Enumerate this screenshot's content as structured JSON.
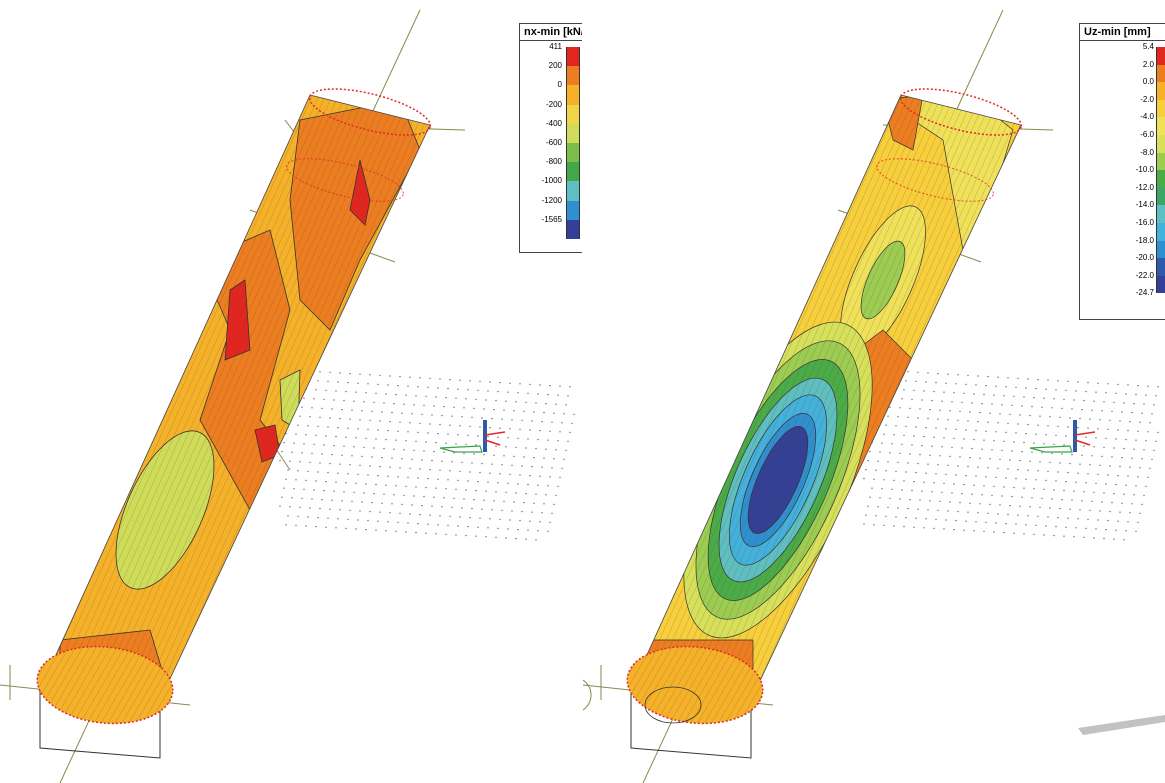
{
  "panels": [
    {
      "legend": {
        "title": "nx-min [kN/m]",
        "labels": [
          "411",
          "200",
          "0",
          "-200",
          "-400",
          "-600",
          "-800",
          "-1000",
          "-1200",
          "-1565"
        ],
        "colors": [
          "#e2251f",
          "#ec7d21",
          "#f5b129",
          "#f0d548",
          "#cfdc5a",
          "#7cbe49",
          "#41a749",
          "#5fbfc0",
          "#2f8fd0",
          "#343f96"
        ]
      }
    },
    {
      "legend": {
        "title": "Uz-min [mm]",
        "labels": [
          "5.4",
          "2.0",
          "0.0",
          "-2.0",
          "-4.0",
          "-6.0",
          "-8.0",
          "-10.0",
          "-12.0",
          "-14.0",
          "-16.0",
          "-18.0",
          "-20.0",
          "-22.0",
          "-24.7"
        ],
        "colors": [
          "#e2251f",
          "#ec7d21",
          "#f5b129",
          "#f7ce3c",
          "#f0e15a",
          "#d6e05a",
          "#9ccc52",
          "#4aab48",
          "#3ea468",
          "#5fbfc0",
          "#43b1dc",
          "#2f8fd0",
          "#2e5aa8",
          "#343f96"
        ]
      }
    }
  ]
}
